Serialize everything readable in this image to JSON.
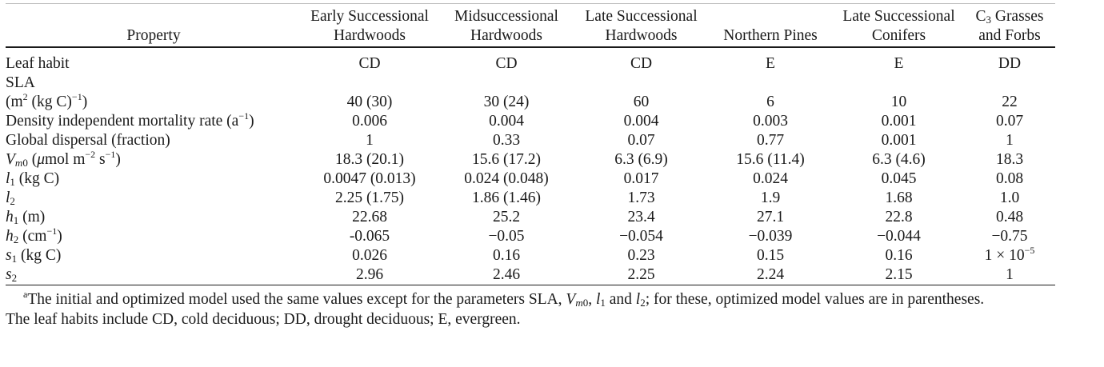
{
  "table": {
    "headers": [
      {
        "lines": [
          "Property"
        ]
      },
      {
        "lines": [
          "Early Successional",
          "Hardwoods"
        ]
      },
      {
        "lines": [
          "Midsuccessional",
          "Hardwoods"
        ]
      },
      {
        "lines": [
          "Late Successional",
          "Hardwoods"
        ]
      },
      {
        "lines": [
          "Northern Pines"
        ]
      },
      {
        "lines": [
          "Late Successional",
          "Conifers"
        ]
      },
      {
        "lines": [
          "C3 Grasses",
          "and Forbs"
        ]
      }
    ],
    "rows": [
      {
        "property": "Leaf habit",
        "values": [
          "CD",
          "CD",
          "CD",
          "E",
          "E",
          "DD"
        ]
      },
      {
        "property_line1": "SLA",
        "property_line2": "(m2 (kg C)−1)",
        "values": [
          "40 (30)",
          "30 (24)",
          "60",
          "6",
          "10",
          "22"
        ]
      },
      {
        "property": "Density independent mortality rate (a−1)",
        "values": [
          "0.006",
          "0.004",
          "0.004",
          "0.003",
          "0.001",
          "0.07"
        ]
      },
      {
        "property": "Global dispersal (fraction)",
        "values": [
          "1",
          "0.33",
          "0.07",
          "0.77",
          "0.001",
          "1"
        ]
      },
      {
        "property": "Vm0 (μmol m−2 s−1)",
        "values": [
          "18.3 (20.1)",
          "15.6 (17.2)",
          "6.3 (6.9)",
          "15.6 (11.4)",
          "6.3 (4.6)",
          "18.3"
        ]
      },
      {
        "property": "l1 (kg C)",
        "values": [
          "0.0047 (0.013)",
          "0.024 (0.048)",
          "0.017",
          "0.024",
          "0.045",
          "0.08"
        ]
      },
      {
        "property": "l2",
        "values": [
          "2.25 (1.75)",
          "1.86 (1.46)",
          "1.73",
          "1.9",
          "1.68",
          "1.0"
        ]
      },
      {
        "property": "h1 (m)",
        "values": [
          "22.68",
          "25.2",
          "23.4",
          "27.1",
          "22.8",
          "0.48"
        ]
      },
      {
        "property": "h2 (cm−1)",
        "values": [
          "-0.065",
          "−0.05",
          "−0.054",
          "−0.039",
          "−0.044",
          "−0.75"
        ]
      },
      {
        "property": "s1 (kg C)",
        "values": [
          "0.026",
          "0.16",
          "0.23",
          "0.15",
          "0.16",
          "1 × 10−5"
        ]
      },
      {
        "property": "s2",
        "values": [
          "2.96",
          "2.46",
          "2.25",
          "2.24",
          "2.15",
          "1"
        ]
      }
    ]
  },
  "footnote": {
    "marker": "a",
    "line1": "The initial and optimized model used the same values except for the parameters SLA, Vm0, l1 and l2; for these, optimized model values are in parentheses.",
    "line2": "The leaf habits include CD, cold deciduous; DD, drought deciduous; E, evergreen."
  }
}
